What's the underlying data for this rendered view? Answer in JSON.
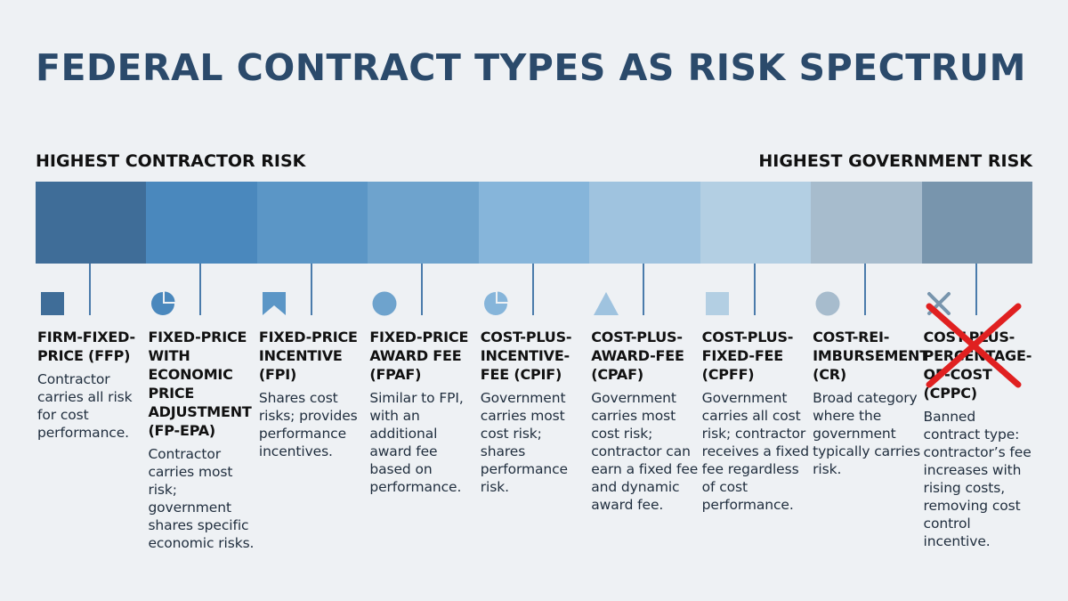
{
  "title": "FEDERAL CONTRACT TYPES AS RISK SPECTRUM",
  "spectrum": {
    "left_label": "HIGHEST CONTRACTOR RISK",
    "right_label": "HIGHEST GOVERNMENT RISK",
    "colors": [
      "#3f6d98",
      "#4a88bd",
      "#5b96c6",
      "#6ea3cd",
      "#86b5da",
      "#9fc3df",
      "#b3cfe3",
      "#a7bccd",
      "#7895ad"
    ]
  },
  "types": [
    {
      "name": "FIRM-FIXED-PRICE (FFP)",
      "description": "Contractor carries all risk for cost performance.",
      "icon": "square-icon",
      "icon_color": "#3f6d98"
    },
    {
      "name": "FIXED-PRICE WITH ECONOMIC PRICE ADJUSTMENT (FP-EPA)",
      "description": "Contractor carries most risk; government shares specific economic risks.",
      "icon": "pie-chart-icon",
      "icon_color": "#4a88bd"
    },
    {
      "name": "FIXED-PRICE INCENTIVE (FPI)",
      "description": "Shares cost risks; provides performance incentives.",
      "icon": "bookmark-icon",
      "icon_color": "#5b96c6"
    },
    {
      "name": "FIXED-PRICE AWARD FEE (FPAF)",
      "description": "Similar to FPI, with an additional award fee based on performance.",
      "icon": "circle-icon",
      "icon_color": "#6ea3cd"
    },
    {
      "name": "COST-PLUS-INCENTIVE-FEE (CPIF)",
      "description": "Government carries most cost risk; shares performance risk.",
      "icon": "pie-chart-icon",
      "icon_color": "#86b5da"
    },
    {
      "name": "COST-PLUS-AWARD-FEE (CPAF)",
      "description": "Government carries most cost risk; contractor can earn a fixed fee and dynamic award fee.",
      "icon": "triangle-icon",
      "icon_color": "#9fc3df"
    },
    {
      "name": "COST-PLUS-FIXED-FEE (CPFF)",
      "description": "Government carries all cost risk; contractor receives a fixed fee regardless of cost performance.",
      "icon": "square-icon",
      "icon_color": "#b3cfe3"
    },
    {
      "name": "COST-REI-IMBURSEMENT (CR)",
      "description": "Broad category where the government typically carries risk.",
      "icon": "circle-icon",
      "icon_color": "#a7bccd"
    },
    {
      "name": "COST-PLUS-PERCENTAGE-OF-COST (CPPC)",
      "description": "Banned contract type: contractor’s fee increases with rising costs, removing cost control incentive.",
      "icon": "x-mark-icon",
      "icon_color": "#7895ad",
      "banned": true,
      "banned_mark_color": "#e02020"
    }
  ]
}
